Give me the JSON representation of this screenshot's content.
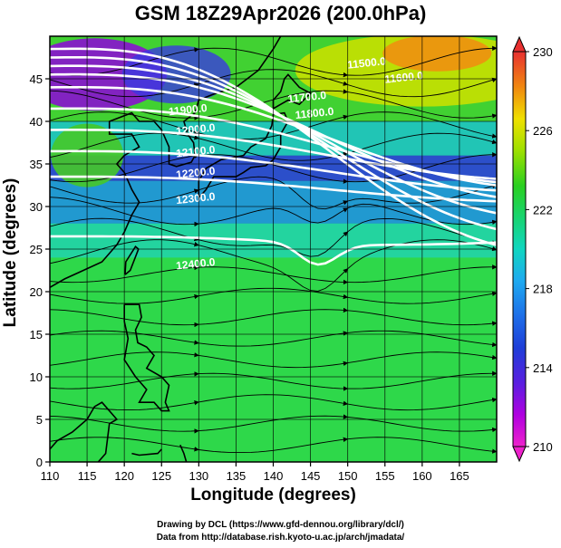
{
  "title": "GSM 18Z29Apr2026 (200.0hPa)",
  "xlabel": "Longitude (degrees)",
  "ylabel": "Latitude  (degrees)",
  "credits": [
    "Drawing by DCL (https://www.gfd-dennou.org/library/dcl/)",
    "Data from http://database.rish.kyoto-u.ac.jp/arch/jmadata/"
  ],
  "map": {
    "lon_range": [
      110,
      170
    ],
    "lat_range": [
      0,
      50
    ],
    "lon_ticks": [
      110,
      115,
      120,
      125,
      130,
      135,
      140,
      145,
      150,
      155,
      160,
      165
    ],
    "lat_ticks": [
      0,
      5,
      10,
      15,
      20,
      25,
      30,
      35,
      40,
      45
    ],
    "colorbar": {
      "min": 210,
      "max": 230,
      "tick_values": [
        210,
        214,
        218,
        222,
        226,
        230
      ],
      "tick_labels": [
        "210",
        "214",
        "218",
        "222",
        "226",
        "230"
      ]
    },
    "contours": [
      {
        "label": "11500.0"
      },
      {
        "label": "11600.0"
      },
      {
        "label": "11700.0"
      },
      {
        "label": "11800.0"
      },
      {
        "label": "11900.0"
      },
      {
        "label": "12000.0"
      },
      {
        "label": "12100.0"
      },
      {
        "label": "12200.0"
      },
      {
        "label": "12300.0"
      },
      {
        "label": "12400.0"
      }
    ]
  }
}
